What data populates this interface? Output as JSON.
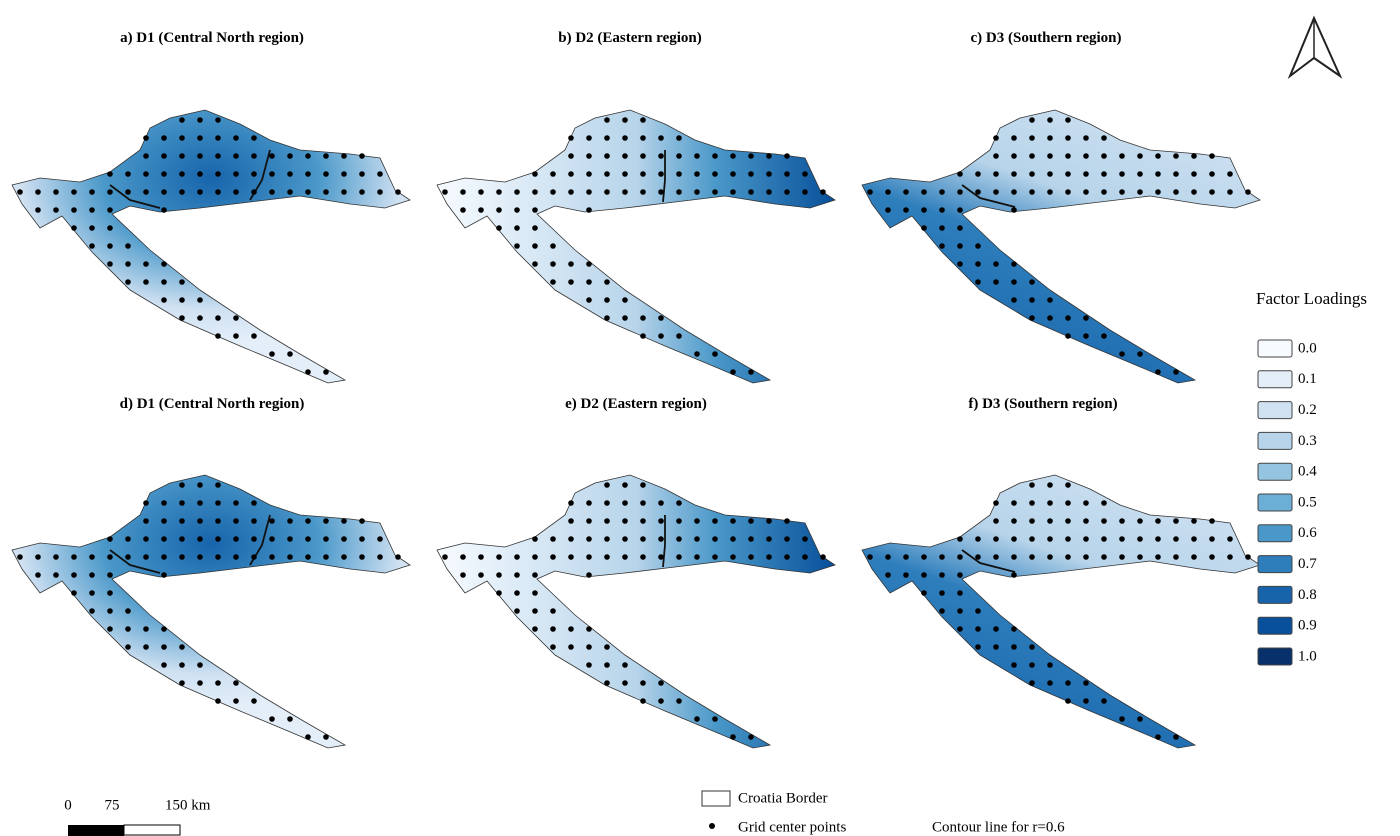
{
  "panels": [
    {
      "title": "a) D1 (Central North region)"
    },
    {
      "title": "b) D2 (Eastern region)"
    },
    {
      "title": "c) D3 (Southern region)"
    },
    {
      "title": "d) D1 (Central North region)"
    },
    {
      "title": "e) D2 (Eastern region)"
    },
    {
      "title": "f) D3 (Southern region)"
    }
  ],
  "legend": {
    "title": "Factor Loadings",
    "items": [
      {
        "label": "0.0",
        "color": "#f7fbff"
      },
      {
        "label": "0.1",
        "color": "#e3eef9"
      },
      {
        "label": "0.2",
        "color": "#d0e1f2"
      },
      {
        "label": "0.3",
        "color": "#b7d4ea"
      },
      {
        "label": "0.4",
        "color": "#94c4df"
      },
      {
        "label": "0.5",
        "color": "#6baed6"
      },
      {
        "label": "0.6",
        "color": "#4a98c9"
      },
      {
        "label": "0.7",
        "color": "#2e7ebc"
      },
      {
        "label": "0.8",
        "color": "#1764ab"
      },
      {
        "label": "0.9",
        "color": "#08509b"
      },
      {
        "label": "1.0",
        "color": "#08306b"
      }
    ]
  },
  "scale_bar": {
    "labels": [
      "0",
      "75",
      "150 km"
    ]
  },
  "map_legend": {
    "border": "Croatia Border",
    "points": "Grid center points",
    "contour": "Contour line for r=0.6"
  }
}
